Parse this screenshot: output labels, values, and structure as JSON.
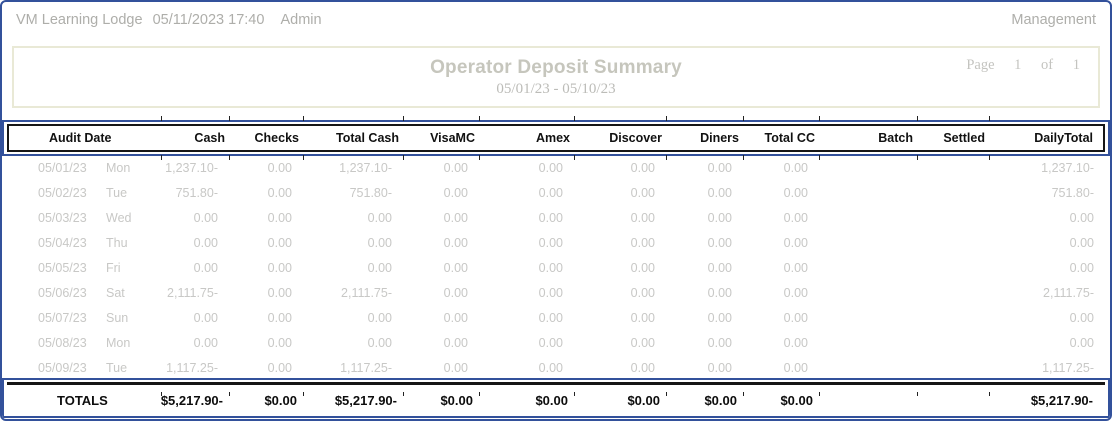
{
  "header": {
    "property": "VM Learning Lodge",
    "datetime": "05/11/2023 17:40",
    "user": "Admin",
    "section": "Management"
  },
  "title_box": {
    "title": "Operator Deposit Summary",
    "date_range": "05/01/23 - 05/10/23",
    "page_label": "Page",
    "page_number": "1",
    "of_label": "of",
    "page_count": "1"
  },
  "table": {
    "columns": [
      "Audit Date",
      "Cash",
      "Checks",
      "Total Cash",
      "VisaMC",
      "Amex",
      "Discover",
      "Diners",
      "Total CC",
      "Batch",
      "Settled",
      "DailyTotal"
    ],
    "rows": [
      {
        "date": "05/01/23",
        "day": "Mon",
        "cash": "1,237.10-",
        "checks": "0.00",
        "total_cash": "1,237.10-",
        "visamc": "0.00",
        "amex": "0.00",
        "discover": "0.00",
        "diners": "0.00",
        "total_cc": "0.00",
        "batch": "",
        "settled": "",
        "daily_total": "1,237.10-"
      },
      {
        "date": "05/02/23",
        "day": "Tue",
        "cash": "751.80-",
        "checks": "0.00",
        "total_cash": "751.80-",
        "visamc": "0.00",
        "amex": "0.00",
        "discover": "0.00",
        "diners": "0.00",
        "total_cc": "0.00",
        "batch": "",
        "settled": "",
        "daily_total": "751.80-"
      },
      {
        "date": "05/03/23",
        "day": "Wed",
        "cash": "0.00",
        "checks": "0.00",
        "total_cash": "0.00",
        "visamc": "0.00",
        "amex": "0.00",
        "discover": "0.00",
        "diners": "0.00",
        "total_cc": "0.00",
        "batch": "",
        "settled": "",
        "daily_total": "0.00"
      },
      {
        "date": "05/04/23",
        "day": "Thu",
        "cash": "0.00",
        "checks": "0.00",
        "total_cash": "0.00",
        "visamc": "0.00",
        "amex": "0.00",
        "discover": "0.00",
        "diners": "0.00",
        "total_cc": "0.00",
        "batch": "",
        "settled": "",
        "daily_total": "0.00"
      },
      {
        "date": "05/05/23",
        "day": "Fri",
        "cash": "0.00",
        "checks": "0.00",
        "total_cash": "0.00",
        "visamc": "0.00",
        "amex": "0.00",
        "discover": "0.00",
        "diners": "0.00",
        "total_cc": "0.00",
        "batch": "",
        "settled": "",
        "daily_total": "0.00"
      },
      {
        "date": "05/06/23",
        "day": "Sat",
        "cash": "2,111.75-",
        "checks": "0.00",
        "total_cash": "2,111.75-",
        "visamc": "0.00",
        "amex": "0.00",
        "discover": "0.00",
        "diners": "0.00",
        "total_cc": "0.00",
        "batch": "",
        "settled": "",
        "daily_total": "2,111.75-"
      },
      {
        "date": "05/07/23",
        "day": "Sun",
        "cash": "0.00",
        "checks": "0.00",
        "total_cash": "0.00",
        "visamc": "0.00",
        "amex": "0.00",
        "discover": "0.00",
        "diners": "0.00",
        "total_cc": "0.00",
        "batch": "",
        "settled": "",
        "daily_total": "0.00"
      },
      {
        "date": "05/08/23",
        "day": "Mon",
        "cash": "0.00",
        "checks": "0.00",
        "total_cash": "0.00",
        "visamc": "0.00",
        "amex": "0.00",
        "discover": "0.00",
        "diners": "0.00",
        "total_cc": "0.00",
        "batch": "",
        "settled": "",
        "daily_total": "0.00"
      },
      {
        "date": "05/09/23",
        "day": "Tue",
        "cash": "1,117.25-",
        "checks": "0.00",
        "total_cash": "1,117.25-",
        "visamc": "0.00",
        "amex": "0.00",
        "discover": "0.00",
        "diners": "0.00",
        "total_cc": "0.00",
        "batch": "",
        "settled": "",
        "daily_total": "1,117.25-"
      }
    ],
    "totals": {
      "label": "TOTALS",
      "cash": "$5,217.90-",
      "checks": "$0.00",
      "total_cash": "$5,217.90-",
      "visamc": "$0.00",
      "amex": "$0.00",
      "discover": "$0.00",
      "diners": "$0.00",
      "total_cc": "$0.00",
      "batch": "",
      "settled": "",
      "daily_total": "$5,217.90-"
    }
  },
  "colors": {
    "accent_blue": "#33519b",
    "box_beige": "#e9e9d6",
    "muted_text": "#aeaeaa",
    "row_text": "#c8c8c6"
  }
}
